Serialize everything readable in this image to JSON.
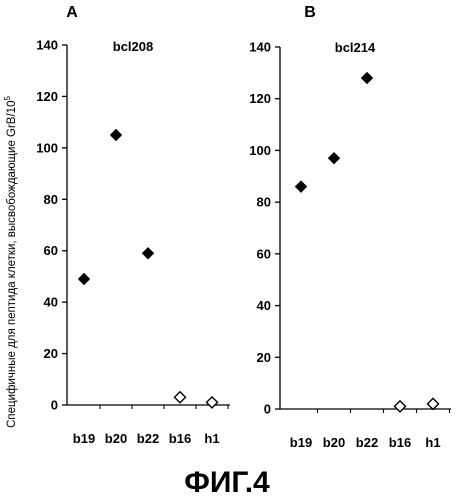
{
  "figure": {
    "ylabel": "Специфичные для пептида клетки, высвобождающие GrB/10",
    "ylabel_sup": "5",
    "caption": "ФИГ.4"
  },
  "chart_data": [
    {
      "type": "scatter",
      "panel": "A",
      "title": "bcl208",
      "categories": [
        "b19",
        "b20",
        "b22",
        "b16",
        "h1"
      ],
      "values": [
        49,
        105,
        59,
        3,
        1
      ],
      "marker_fill": [
        "filled",
        "filled",
        "filled",
        "open",
        "open"
      ],
      "ylim": [
        0,
        140
      ],
      "yticks": [
        0,
        20,
        40,
        60,
        80,
        100,
        120,
        140
      ],
      "ytick_labels": [
        "0",
        "20",
        "40",
        "60",
        "80",
        "100",
        "120",
        "140"
      ],
      "grid": false,
      "legend": "none"
    },
    {
      "type": "scatter",
      "panel": "B",
      "title": "bcl214",
      "categories": [
        "b19",
        "b20",
        "b22",
        "b16",
        "h1"
      ],
      "values": [
        86,
        97,
        128,
        1,
        2
      ],
      "marker_fill": [
        "filled",
        "filled",
        "filled",
        "open",
        "open"
      ],
      "ylim": [
        0,
        140
      ],
      "yticks": [
        0,
        20,
        40,
        60,
        80,
        100,
        120,
        140
      ],
      "ytick_labels": [
        "0",
        "20",
        "40",
        "60",
        "80",
        "100",
        "120",
        "140"
      ],
      "grid": false,
      "legend": "none"
    }
  ]
}
